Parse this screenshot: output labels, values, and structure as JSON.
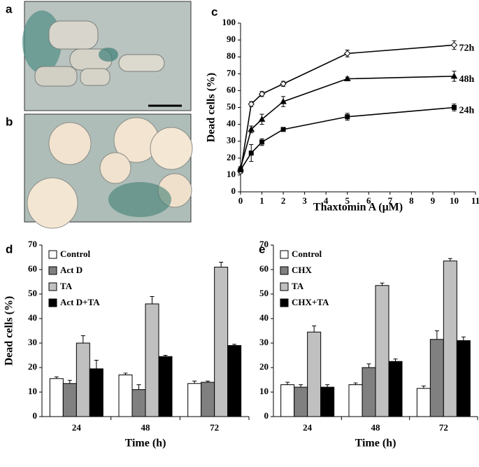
{
  "panel_labels": [
    "a",
    "b",
    "c",
    "d",
    "e"
  ],
  "chart_data": [
    {
      "type": "line",
      "x_label": "Thaxtomin A (μM)",
      "y_label": "Dead cells (%)",
      "x": [
        0,
        0.5,
        1,
        2,
        5,
        10
      ],
      "xlim": [
        0,
        11
      ],
      "xticks": [
        0,
        1,
        2,
        3,
        4,
        5,
        6,
        7,
        8,
        9,
        10,
        11
      ],
      "ylim": [
        0,
        100
      ],
      "yticks": [
        0,
        10,
        20,
        30,
        40,
        50,
        60,
        70,
        80,
        90,
        100
      ],
      "series": [
        {
          "name": "72h",
          "color": "#000000",
          "marker": "diamond",
          "marker_fill": "#ffffff",
          "values": [
            12,
            52,
            58,
            64,
            82,
            87
          ],
          "errors": [
            1,
            1.5,
            1.5,
            1.5,
            2,
            2.5
          ]
        },
        {
          "name": "48h",
          "color": "#000000",
          "marker": "triangle",
          "marker_fill": "#000000",
          "values": [
            14,
            37,
            43,
            53.5,
            67,
            68.5
          ],
          "errors": [
            1,
            2,
            3,
            3,
            1,
            3
          ]
        },
        {
          "name": "24h",
          "color": "#000000",
          "marker": "square",
          "marker_fill": "#000000",
          "values": [
            13,
            23,
            29.5,
            37,
            44.5,
            50
          ],
          "errors": [
            1,
            5,
            2,
            1,
            2,
            2
          ]
        }
      ]
    },
    {
      "type": "bar",
      "x_label": "Time (h)",
      "y_label": "Dead cells (%)",
      "categories": [
        "24",
        "48",
        "72"
      ],
      "ylim": [
        0,
        70
      ],
      "yticks": [
        0,
        10,
        20,
        30,
        40,
        50,
        60,
        70
      ],
      "series": [
        {
          "name": "Control",
          "color": "#ffffff",
          "values": [
            15.5,
            17,
            13.5
          ],
          "errors": [
            0.7,
            0.7,
            1
          ]
        },
        {
          "name": "Act D",
          "color": "#808080",
          "values": [
            13.5,
            11,
            14
          ],
          "errors": [
            1.3,
            2,
            0.5
          ]
        },
        {
          "name": "TA",
          "color": "#c0c0c0",
          "values": [
            30,
            46,
            61
          ],
          "errors": [
            3,
            3,
            2
          ]
        },
        {
          "name": "Act D+TA",
          "color": "#000000",
          "values": [
            19.5,
            24.5,
            29
          ],
          "errors": [
            3.5,
            0.5,
            0.5
          ]
        }
      ]
    },
    {
      "type": "bar",
      "x_label": "Time (h)",
      "categories": [
        "24",
        "48",
        "72"
      ],
      "ylim": [
        0,
        70
      ],
      "yticks": [
        0,
        10,
        20,
        30,
        40,
        50,
        60,
        70
      ],
      "series": [
        {
          "name": "Control",
          "color": "#ffffff",
          "values": [
            13,
            13,
            11.5
          ],
          "errors": [
            1,
            0.7,
            1
          ]
        },
        {
          "name": "CHX",
          "color": "#808080",
          "values": [
            12,
            20,
            31.5
          ],
          "errors": [
            1,
            1.5,
            3.5
          ]
        },
        {
          "name": "TA",
          "color": "#c0c0c0",
          "values": [
            34.5,
            53.5,
            63.5
          ],
          "errors": [
            2.5,
            1,
            1
          ]
        },
        {
          "name": "CHX+TA",
          "color": "#000000",
          "values": [
            12,
            22.5,
            31
          ],
          "errors": [
            1,
            1,
            1.5
          ]
        }
      ]
    }
  ]
}
